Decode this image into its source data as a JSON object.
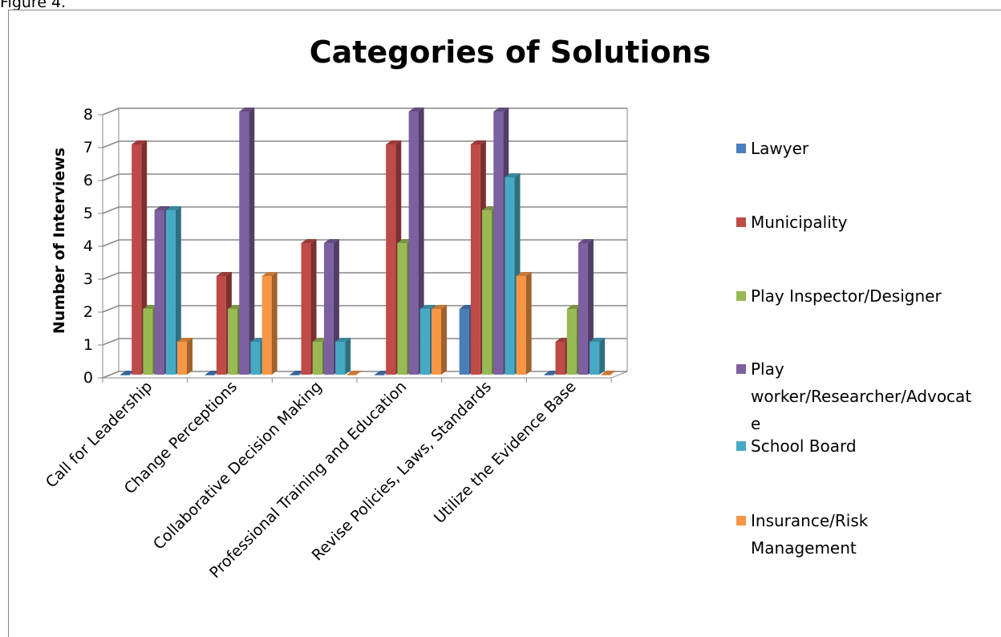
{
  "chart_data": {
    "type": "bar3d",
    "caption": "Figure 4.",
    "title": "Categories of Solutions",
    "y_label": "Number of Interviews",
    "categories": [
      "Call for Leadership",
      "Change Perceptions",
      "Collaborative Decision Making",
      "Professional Training and Education",
      "Revise Policies, Laws, Standards",
      "Utilize the Evidence Base"
    ],
    "series": [
      {
        "name": "Lawyer",
        "color": "#4a7ebb",
        "values": [
          0,
          0,
          0,
          0,
          2,
          0
        ]
      },
      {
        "name": "Municipality",
        "color": "#be4b48",
        "values": [
          7,
          3,
          4,
          7,
          7,
          1
        ]
      },
      {
        "name": "Play Inspector/Designer",
        "color": "#98b954",
        "values": [
          2,
          2,
          1,
          4,
          5,
          2
        ]
      },
      {
        "name": "Play worker/Researcher/Advocate",
        "color": "#7d60a0",
        "values": [
          5,
          8,
          4,
          8,
          8,
          4
        ]
      },
      {
        "name": "School Board",
        "color": "#46aac5",
        "values": [
          5,
          1,
          1,
          2,
          6,
          1
        ]
      },
      {
        "name": "Insurance/Risk Management",
        "color": "#f79646",
        "values": [
          1,
          3,
          0,
          2,
          3,
          0
        ]
      }
    ],
    "ylim": [
      0,
      8
    ],
    "yticks": [
      0,
      1,
      2,
      3,
      4,
      5,
      6,
      7,
      8
    ],
    "grid": true,
    "legend": "right"
  }
}
